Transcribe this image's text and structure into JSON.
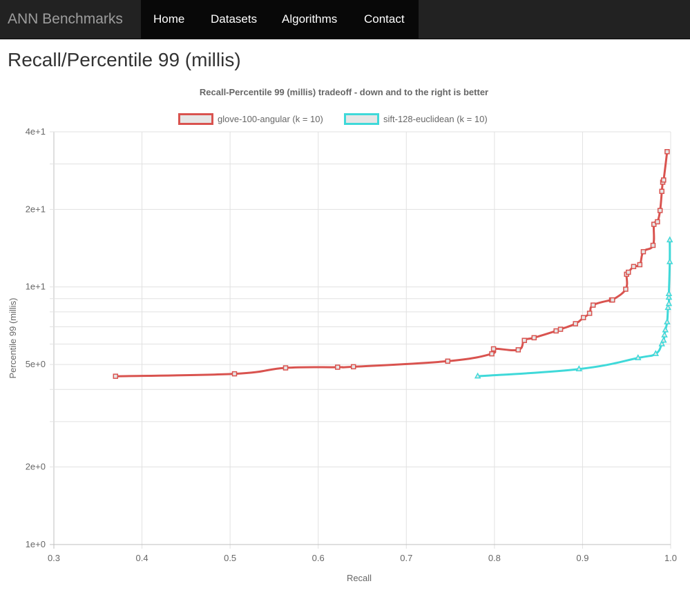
{
  "navbar": {
    "brand": "ANN Benchmarks",
    "links": [
      {
        "label": "Home"
      },
      {
        "label": "Datasets"
      },
      {
        "label": "Algorithms"
      },
      {
        "label": "Contact"
      }
    ]
  },
  "page": {
    "title": "Recall/Percentile 99 (millis)"
  },
  "chart_data": {
    "type": "line",
    "title": "Recall-Percentile 99 (millis) tradeoff - down and to the right is better",
    "xlabel": "Recall",
    "ylabel": "Percentile 99 (millis)",
    "xlim": [
      0.3,
      1.0
    ],
    "ylim": [
      1,
      40
    ],
    "y_scale": "log",
    "x_ticks": [
      "0.3",
      "0.4",
      "0.5",
      "0.6",
      "0.7",
      "0.8",
      "0.9",
      "1.0"
    ],
    "x_tick_values": [
      0.3,
      0.4,
      0.5,
      0.6,
      0.7,
      0.8,
      0.9,
      1.0
    ],
    "y_ticks": [
      "1e+0",
      "2e+0",
      "5e+0",
      "1e+1",
      "2e+1",
      "4e+1"
    ],
    "y_tick_values": [
      1,
      2,
      5,
      10,
      20,
      40
    ],
    "y_grid_values": [
      1,
      2,
      3,
      4,
      5,
      6,
      7,
      8,
      9,
      10,
      20,
      30,
      40
    ],
    "grid": true,
    "legend_position": "top",
    "series": [
      {
        "name": "glove-100-angular (k = 10)",
        "color": "#d9534f",
        "marker": "square",
        "points": [
          [
            0.37,
            4.5
          ],
          [
            0.505,
            4.6
          ],
          [
            0.563,
            4.85
          ],
          [
            0.622,
            4.88
          ],
          [
            0.64,
            4.9
          ],
          [
            0.747,
            5.15
          ],
          [
            0.797,
            5.5
          ],
          [
            0.799,
            5.75
          ],
          [
            0.827,
            5.7
          ],
          [
            0.834,
            6.2
          ],
          [
            0.845,
            6.35
          ],
          [
            0.87,
            6.75
          ],
          [
            0.875,
            6.85
          ],
          [
            0.892,
            7.2
          ],
          [
            0.901,
            7.6
          ],
          [
            0.908,
            7.9
          ],
          [
            0.912,
            8.5
          ],
          [
            0.933,
            8.9
          ],
          [
            0.934,
            8.9
          ],
          [
            0.949,
            9.8
          ],
          [
            0.95,
            11.2
          ],
          [
            0.952,
            11.4
          ],
          [
            0.958,
            12.0
          ],
          [
            0.965,
            12.2
          ],
          [
            0.969,
            13.7
          ],
          [
            0.98,
            14.5
          ],
          [
            0.981,
            17.5
          ],
          [
            0.985,
            17.9
          ],
          [
            0.988,
            19.8
          ],
          [
            0.99,
            23.5
          ],
          [
            0.991,
            25.5
          ],
          [
            0.992,
            26.0
          ],
          [
            0.996,
            33.5
          ]
        ]
      },
      {
        "name": "sift-128-euclidean (k = 10)",
        "color": "#3fd9d9",
        "marker": "triangle",
        "points": [
          [
            0.781,
            4.5
          ],
          [
            0.896,
            4.8
          ],
          [
            0.963,
            5.3
          ],
          [
            0.983,
            5.5
          ],
          [
            0.99,
            6.0
          ],
          [
            0.992,
            6.2
          ],
          [
            0.993,
            6.5
          ],
          [
            0.994,
            6.8
          ],
          [
            0.996,
            7.3
          ],
          [
            0.997,
            8.3
          ],
          [
            0.998,
            8.6
          ],
          [
            0.998,
            9.1
          ],
          [
            0.998,
            9.4
          ],
          [
            0.999,
            12.5
          ],
          [
            0.999,
            15.2
          ]
        ]
      }
    ]
  }
}
